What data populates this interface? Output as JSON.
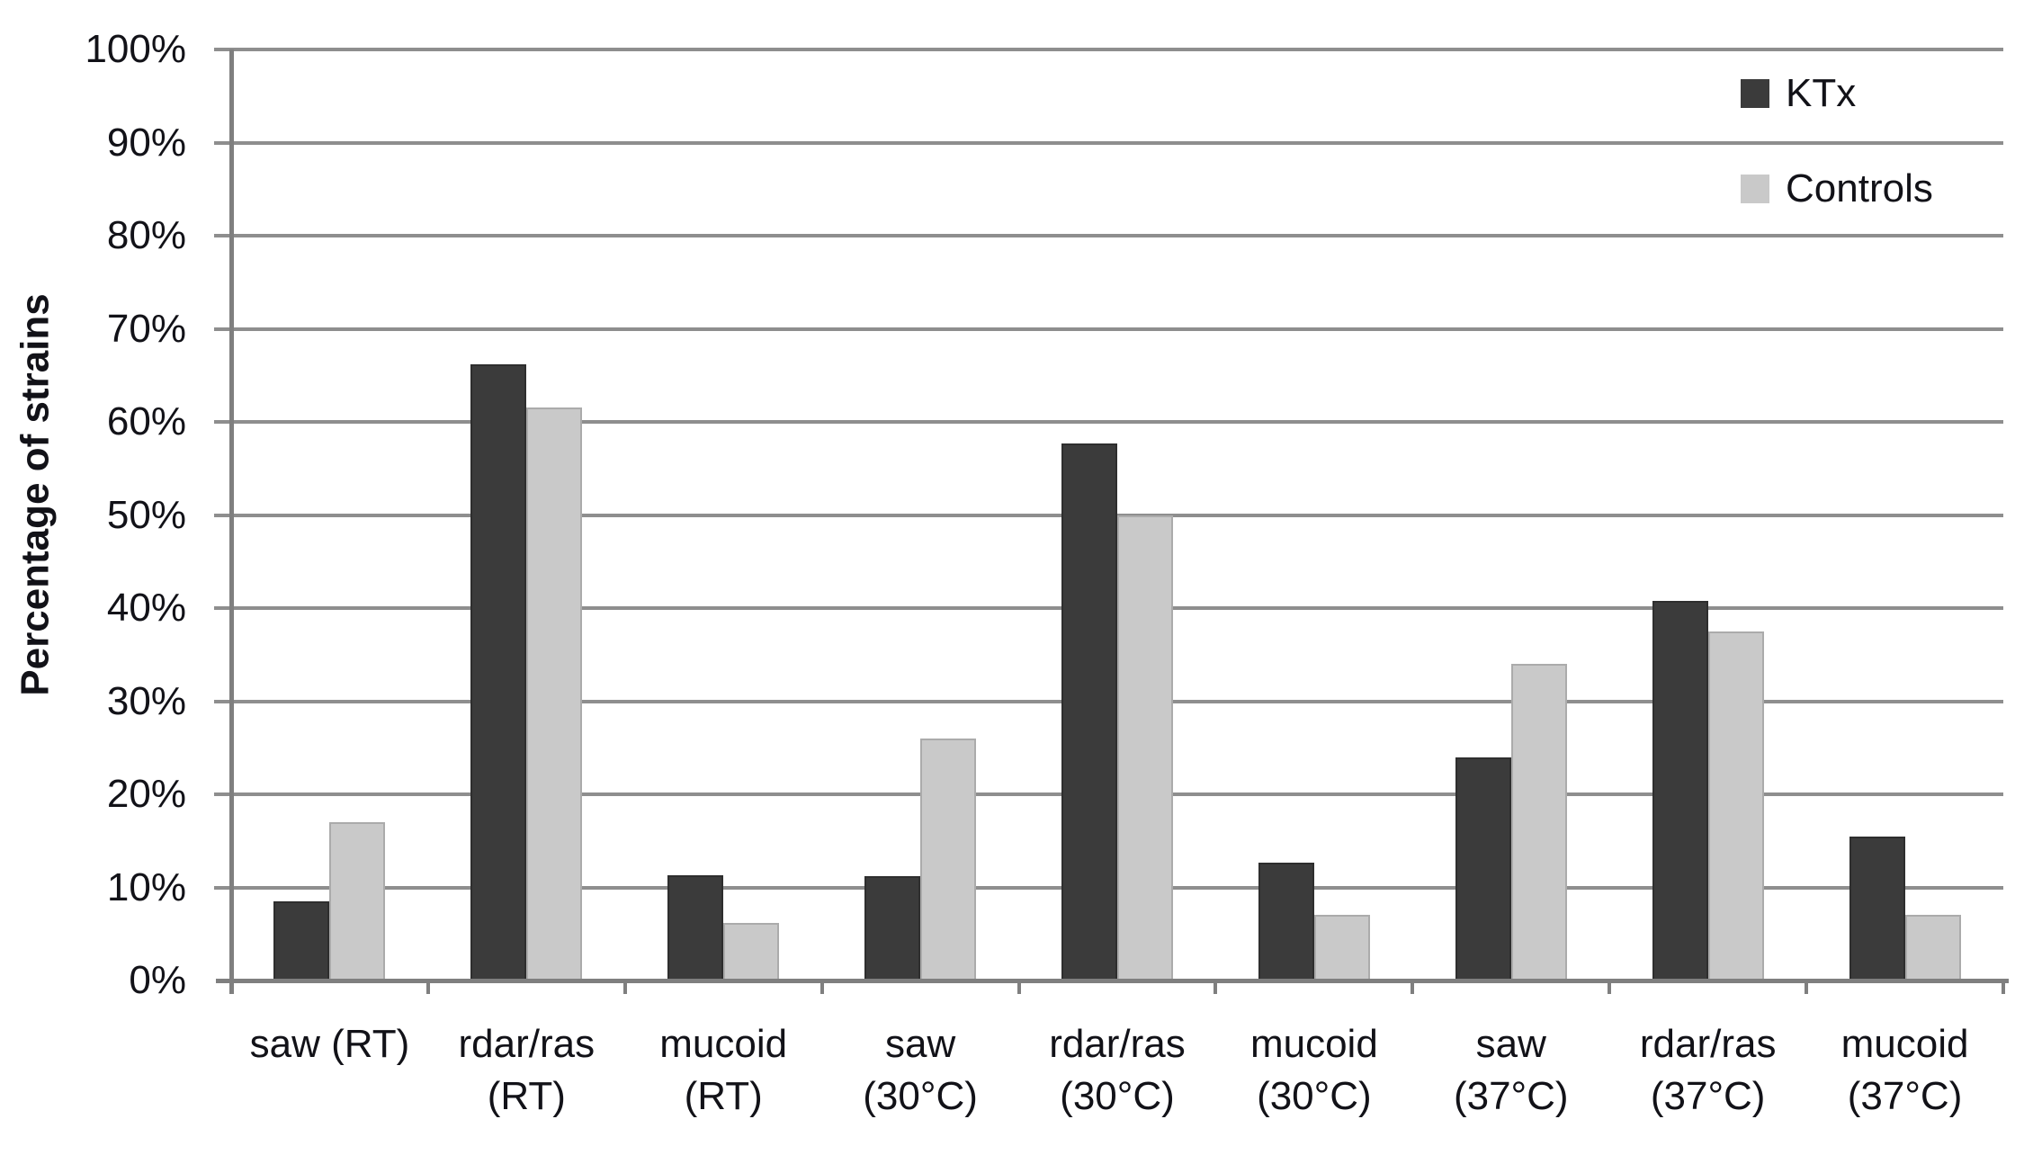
{
  "figure": {
    "background": "#ffffff"
  },
  "chart_data": {
    "type": "bar",
    "title": "",
    "xlabel": "",
    "ylabel": "Percentage of strains",
    "ylim": [
      0,
      100
    ],
    "ytick_step": 10,
    "ytick_labels": [
      "0%",
      "10%",
      "20%",
      "30%",
      "40%",
      "50%",
      "60%",
      "70%",
      "80%",
      "90%",
      "100%"
    ],
    "categories": [
      "saw (RT)",
      "rdar/ras\n(RT)",
      "mucoid\n(RT)",
      "saw\n(30°C)",
      "rdar/ras\n(30°C)",
      "mucoid\n(30°C)",
      "saw\n(37°C)",
      "rdar/ras\n(37°C)",
      "mucoid\n(37°C)"
    ],
    "series": [
      {
        "name": "KTx",
        "color": "#3b3b3b",
        "edge_color": "#2e2e2e",
        "values": [
          8.5,
          66.2,
          11.3,
          11.2,
          57.7,
          12.7,
          24.0,
          40.8,
          15.5
        ]
      },
      {
        "name": "Controls",
        "color": "#c9c9c9",
        "edge_color": "#ababab",
        "values": [
          17.0,
          61.5,
          6.2,
          26.0,
          50.0,
          7.1,
          34.0,
          37.5,
          7.1
        ]
      }
    ],
    "grid": true,
    "legend_position": "top-right",
    "colors": {
      "gridline": "#8e8e8e",
      "axis": "#7f7f7f",
      "text": "#121218"
    }
  }
}
